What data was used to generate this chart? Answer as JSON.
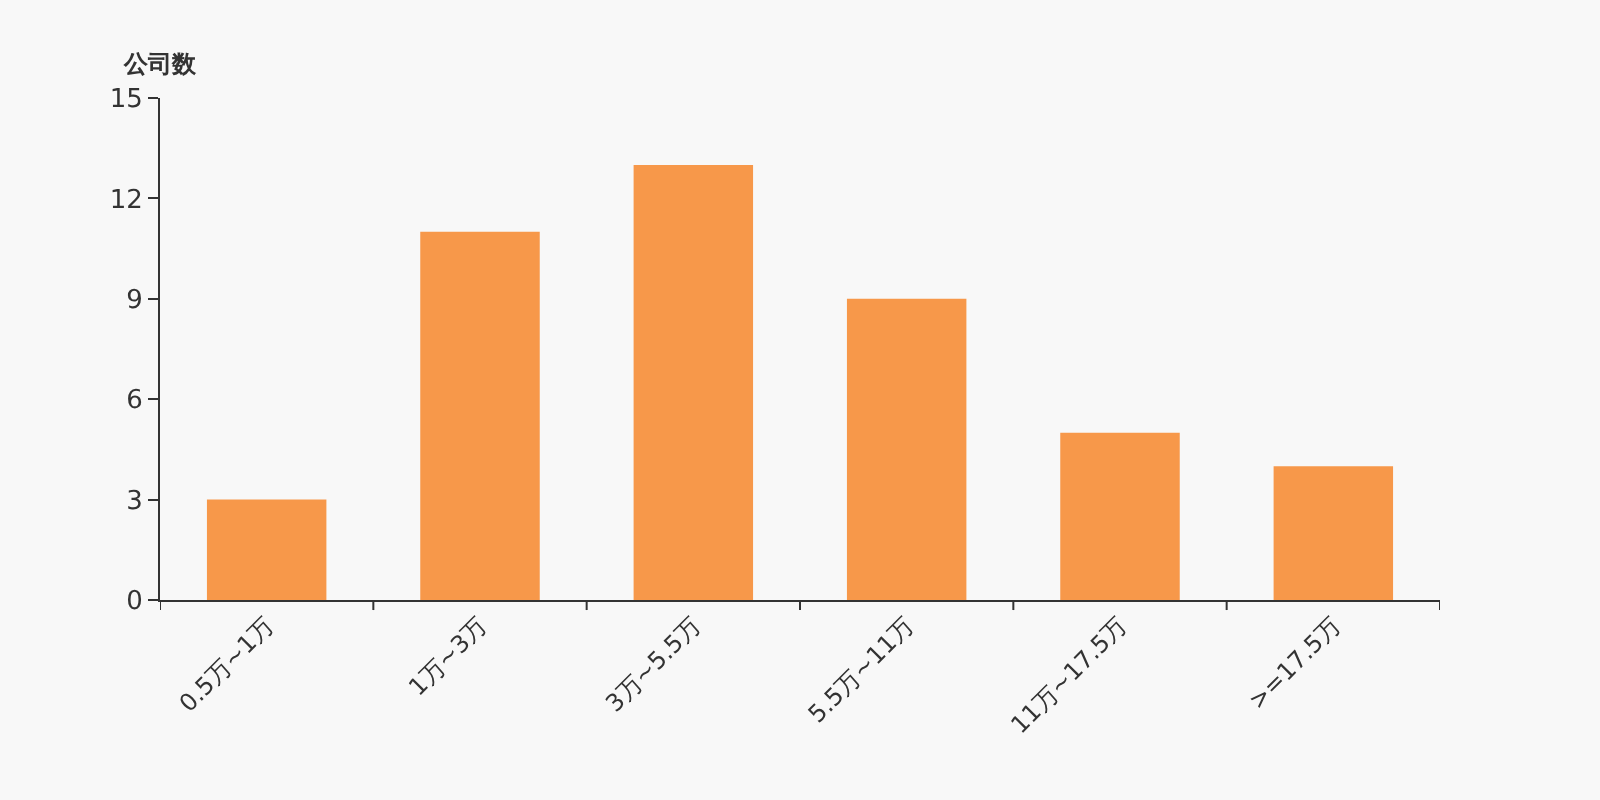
{
  "chart_data": {
    "type": "bar",
    "ylabel": "公司数",
    "categories": [
      "0.5万~1万",
      "1万~3万",
      "3万~5.5万",
      "5.5万~11万",
      "11万~17.5万",
      ">=17.5万"
    ],
    "values": [
      3,
      11,
      13,
      9,
      5,
      4
    ],
    "color": "#f7984a",
    "ylim": [
      0,
      15
    ],
    "yticks": [
      0,
      3,
      6,
      9,
      12,
      15
    ],
    "grid": false
  }
}
